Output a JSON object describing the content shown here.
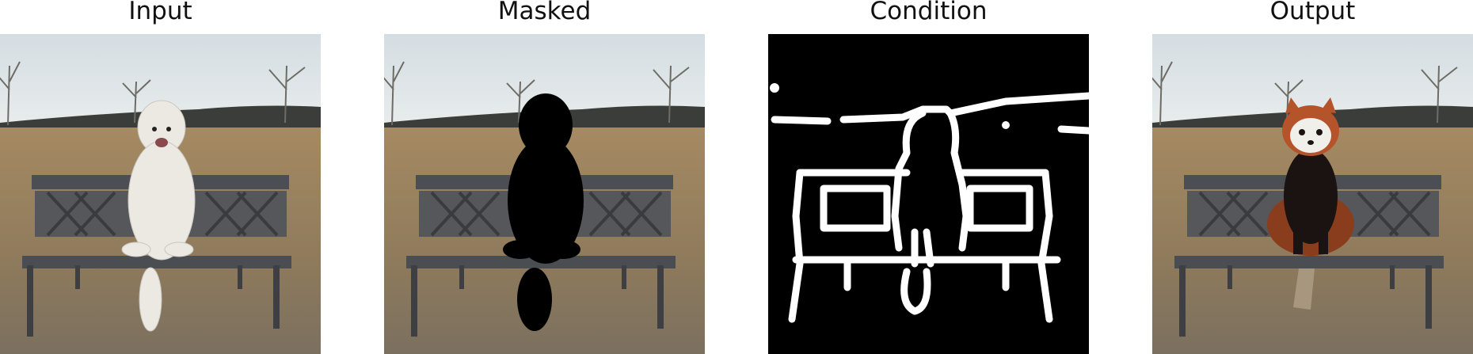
{
  "figure": {
    "panels": [
      {
        "title": "Input",
        "image": "photo of dog sitting on wooden bench in a dry field"
      },
      {
        "title": "Masked",
        "image": "same photo with the dog region blacked out"
      },
      {
        "title": "Condition",
        "image": "black and white edge map of the bench and subject"
      },
      {
        "title": "Output",
        "image": "photo with a red panda sitting on the bench"
      }
    ]
  },
  "colors": {
    "sky": "#dfe5e8",
    "field": "#9a8463",
    "bench": "#4a4d52",
    "mask": "#000000",
    "edge": "#ffffff",
    "dog": "#ebe9e2",
    "red_panda": "#8a3d1c"
  }
}
